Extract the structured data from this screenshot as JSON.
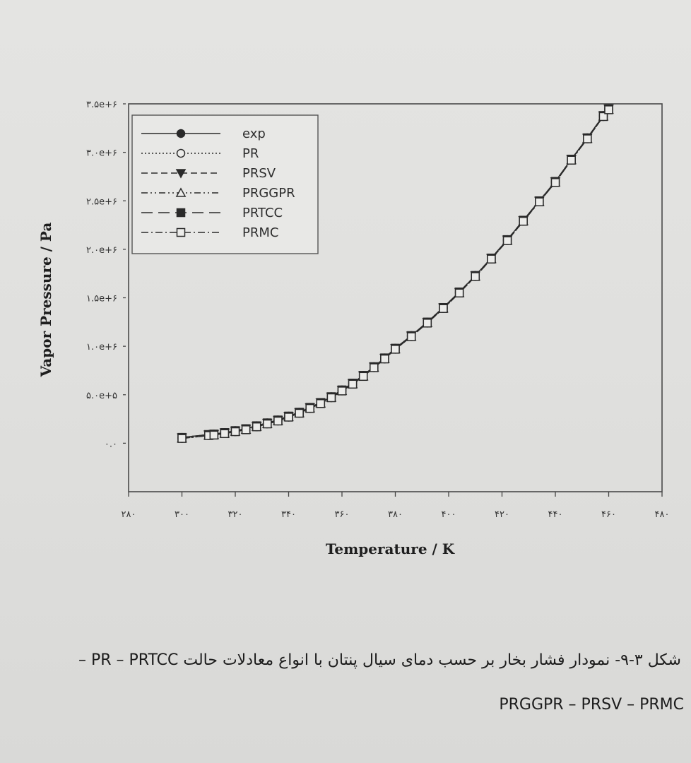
{
  "chart_data": {
    "type": "line",
    "xlabel": "Temperature / K",
    "ylabel": "Vapor Pressure / Pa",
    "xlim": [
      280,
      480
    ],
    "ylim": [
      -500000,
      3500000
    ],
    "x_ticks": [
      280,
      300,
      320,
      340,
      360,
      380,
      400,
      420,
      440,
      460,
      480
    ],
    "x_tick_labels": [
      "۲۸۰",
      "۳۰۰",
      "۳۲۰",
      "۳۴۰",
      "۳۶۰",
      "۳۸۰",
      "۴۰۰",
      "۴۲۰",
      "۴۴۰",
      "۴۶۰",
      "۴۸۰"
    ],
    "y_ticks": [
      0,
      500000,
      1000000,
      1500000,
      2000000,
      2500000,
      3000000,
      3500000
    ],
    "y_tick_labels": [
      "۰.۰",
      "۵.۰e+۵",
      "۱.۰e+۶",
      "۱.۵e+۶",
      "۲.۰e+۶",
      "۲.۵e+۶",
      "۳.۰e+۶",
      "۳.۵e+۶"
    ],
    "legend_position": "top-left",
    "grid": false,
    "x": [
      300,
      310,
      312,
      316,
      320,
      324,
      328,
      332,
      336,
      340,
      344,
      348,
      352,
      356,
      360,
      364,
      368,
      372,
      376,
      380,
      386,
      392,
      398,
      404,
      410,
      416,
      422,
      428,
      434,
      440,
      446,
      452,
      458,
      460
    ],
    "series": [
      {
        "name": "exp",
        "style": "solid",
        "marker": "filled-circle",
        "values": [
          60000,
          90000,
          95000,
          110000,
          130000,
          150000,
          180000,
          210000,
          240000,
          280000,
          320000,
          370000,
          420000,
          480000,
          550000,
          620000,
          700000,
          790000,
          880000,
          980000,
          1110000,
          1250000,
          1400000,
          1560000,
          1730000,
          1910000,
          2100000,
          2300000,
          2500000,
          2700000,
          2930000,
          3150000,
          3380000,
          3450000
        ]
      },
      {
        "name": "PR",
        "style": "dotted",
        "marker": "open-circle",
        "values": [
          60000,
          90000,
          95000,
          110000,
          130000,
          150000,
          180000,
          210000,
          240000,
          280000,
          320000,
          370000,
          420000,
          480000,
          550000,
          620000,
          700000,
          790000,
          880000,
          980000,
          1110000,
          1250000,
          1400000,
          1560000,
          1730000,
          1910000,
          2100000,
          2300000,
          2500000,
          2700000,
          2930000,
          3150000,
          3380000,
          3450000
        ]
      },
      {
        "name": "PRSV",
        "style": "dashed",
        "marker": "filled-triangle-down",
        "values": [
          60000,
          90000,
          95000,
          110000,
          130000,
          150000,
          180000,
          210000,
          240000,
          280000,
          320000,
          370000,
          420000,
          480000,
          550000,
          620000,
          700000,
          790000,
          880000,
          980000,
          1110000,
          1250000,
          1400000,
          1560000,
          1730000,
          1910000,
          2100000,
          2300000,
          2500000,
          2700000,
          2930000,
          3150000,
          3380000,
          3450000
        ]
      },
      {
        "name": "PRGGPR",
        "style": "dash-dot-dot",
        "marker": "open-triangle-up",
        "values": [
          60000,
          90000,
          95000,
          110000,
          130000,
          150000,
          180000,
          210000,
          240000,
          280000,
          320000,
          370000,
          420000,
          480000,
          550000,
          620000,
          700000,
          790000,
          880000,
          980000,
          1110000,
          1250000,
          1400000,
          1560000,
          1730000,
          1910000,
          2100000,
          2300000,
          2500000,
          2700000,
          2930000,
          3150000,
          3380000,
          3450000
        ]
      },
      {
        "name": "PRTCC",
        "style": "long-dash",
        "marker": "filled-square",
        "values": [
          60000,
          90000,
          95000,
          110000,
          130000,
          150000,
          180000,
          210000,
          240000,
          280000,
          320000,
          370000,
          420000,
          480000,
          550000,
          620000,
          700000,
          790000,
          880000,
          980000,
          1110000,
          1250000,
          1400000,
          1560000,
          1730000,
          1910000,
          2100000,
          2300000,
          2500000,
          2700000,
          2930000,
          3150000,
          3380000,
          3450000
        ]
      },
      {
        "name": "PRMC",
        "style": "dash-dot",
        "marker": "open-square",
        "values": [
          60000,
          90000,
          95000,
          110000,
          130000,
          150000,
          180000,
          210000,
          240000,
          280000,
          320000,
          370000,
          420000,
          480000,
          550000,
          620000,
          700000,
          790000,
          880000,
          980000,
          1110000,
          1250000,
          1400000,
          1560000,
          1730000,
          1910000,
          2100000,
          2300000,
          2500000,
          2700000,
          2930000,
          3150000,
          3380000,
          3450000
        ]
      }
    ]
  },
  "caption": {
    "line1": "شکل ۳-۹- نمودار فشار بخار بر حسب دمای سیال پنتان با انواع معادلات حالت PR – PRTCC –",
    "line2": "PRGGPR – PRSV  – PRMC"
  },
  "colors": {
    "ink": "#2a2a2a",
    "background": "#e2e2e0"
  }
}
